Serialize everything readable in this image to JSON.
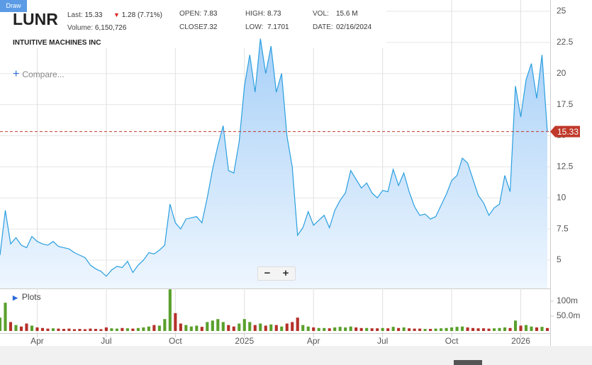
{
  "header": {
    "draw": "Draw",
    "symbol": "LUNR",
    "last_label": "Last:",
    "change": "1.28 (7.71%)",
    "volume_label": "Volume:",
    "volume": "6,150,726",
    "name": "INTUITIVE MACHINES INC",
    "open_label": "OPEN:",
    "open": "7.83",
    "close_label": "CLOSE:",
    "close": "7.32",
    "high_label": "HIGH:",
    "high": "8.73",
    "low_label": "LOW:",
    "low": "7.1701",
    "vol_label": "VOL:",
    "vol": "15.6 M",
    "date_label": "DATE:",
    "date": "02/16/2024",
    "compare": "Compare...",
    "plots": "Plots",
    "zoom_out": "−",
    "zoom_in": "+"
  },
  "chart_data": {
    "type": "area",
    "color": "#2a9fe0",
    "fill_top": "#a8d0f8",
    "fill_bottom": "#eef6fe",
    "last_price": 15.33,
    "last_color": "#c0392b",
    "categories": [
      null,
      null,
      null,
      null,
      null,
      null,
      null,
      "Apr",
      null,
      null,
      null,
      null,
      null,
      null,
      null,
      null,
      null,
      null,
      null,
      null,
      "Jul",
      null,
      null,
      null,
      null,
      null,
      null,
      null,
      null,
      null,
      null,
      null,
      null,
      "Oct",
      null,
      null,
      null,
      null,
      null,
      null,
      null,
      null,
      null,
      null,
      null,
      null,
      "2025",
      null,
      null,
      null,
      null,
      null,
      null,
      null,
      null,
      null,
      null,
      null,
      null,
      "Apr",
      null,
      null,
      null,
      null,
      null,
      null,
      null,
      null,
      null,
      null,
      null,
      null,
      "Jul",
      null,
      null,
      null,
      null,
      null,
      null,
      null,
      null,
      null,
      null,
      null,
      null,
      "Oct",
      null,
      null,
      null,
      null,
      null,
      null,
      null,
      null,
      null,
      null,
      null,
      null,
      "2026",
      null,
      null,
      null,
      null,
      null
    ],
    "values": [
      5.4,
      9.0,
      6.3,
      6.8,
      6.2,
      6.0,
      6.9,
      6.5,
      6.3,
      6.2,
      6.5,
      6.1,
      6.0,
      5.9,
      5.6,
      5.4,
      5.2,
      4.6,
      4.3,
      4.1,
      3.7,
      4.2,
      4.5,
      4.4,
      4.9,
      4.0,
      4.6,
      5.0,
      5.6,
      5.5,
      5.8,
      6.2,
      9.5,
      8.0,
      7.5,
      8.3,
      8.4,
      8.5,
      8.0,
      10.0,
      12.3,
      14.2,
      15.8,
      12.2,
      12.0,
      14.5,
      19.0,
      21.5,
      18.5,
      22.8,
      20.0,
      22.2,
      18.5,
      20.0,
      15.0,
      12.5,
      7.0,
      7.6,
      8.9,
      7.8,
      8.2,
      8.6,
      7.6,
      9.0,
      9.8,
      10.4,
      12.2,
      11.5,
      10.8,
      11.2,
      10.4,
      10.0,
      10.6,
      10.5,
      12.3,
      11.0,
      12.0,
      10.5,
      9.3,
      8.6,
      8.7,
      8.3,
      8.5,
      9.4,
      10.3,
      11.4,
      11.8,
      13.2,
      12.8,
      11.5,
      10.2,
      9.6,
      8.6,
      9.2,
      9.5,
      11.8,
      10.5,
      19.0,
      16.5,
      19.5,
      20.8,
      18.0,
      21.5,
      15.33
    ],
    "ylim": [
      2.72,
      25.91
    ],
    "yticks": [
      5,
      7.5,
      10,
      12.5,
      15,
      17.5,
      20,
      22.5,
      25
    ],
    "grid": true,
    "volume": [
      45000000.0,
      95000000.0,
      30000000.0,
      20000000.0,
      15000000.0,
      25000000.0,
      18000000.0,
      12000000.0,
      10000000.0,
      8000000.0,
      9000000.0,
      8000000.0,
      7000000.0,
      8000000.0,
      6000000.0,
      7000000.0,
      6000000.0,
      8000000.0,
      7000000.0,
      6000000.0,
      12000000.0,
      9000000.0,
      8000000.0,
      10000000.0,
      9000000.0,
      8000000.0,
      10000000.0,
      12000000.0,
      15000000.0,
      20000000.0,
      18000000.0,
      40000000.0,
      140000000.0,
      60000000.0,
      25000000.0,
      20000000.0,
      15000000.0,
      18000000.0,
      14000000.0,
      30000000.0,
      35000000.0,
      40000000.0,
      30000000.0,
      20000000.0,
      15000000.0,
      25000000.0,
      40000000.0,
      30000000.0,
      20000000.0,
      25000000.0,
      18000000.0,
      22000000.0,
      20000000.0,
      15000000.0,
      25000000.0,
      30000000.0,
      45000000.0,
      20000000.0,
      15000000.0,
      12000000.0,
      10000000.0,
      10000000.0,
      9000000.0,
      12000000.0,
      14000000.0,
      12000000.0,
      15000000.0,
      12000000.0,
      10000000.0,
      10000000.0,
      9000000.0,
      9000000.0,
      10000000.0,
      9000000.0,
      14000000.0,
      10000000.0,
      12000000.0,
      9000000.0,
      8000000.0,
      8000000.0,
      7000000.0,
      7000000.0,
      8000000.0,
      9000000.0,
      10000000.0,
      12000000.0,
      14000000.0,
      15000000.0,
      12000000.0,
      10000000.0,
      9000000.0,
      9000000.0,
      8000000.0,
      9000000.0,
      10000000.0,
      12000000.0,
      10000000.0,
      35000000.0,
      18000000.0,
      20000000.0,
      15000000.0,
      12000000.0,
      14000000.0,
      10000000.0
    ],
    "y2lim": [
      0,
      140500000
    ],
    "y2ticks": [
      {
        "value": 50000000,
        "label": "50.0m"
      },
      {
        "value": 100000000,
        "label": "100m"
      }
    ],
    "up_color": "#5aa02c",
    "down_color": "#b5302a"
  }
}
